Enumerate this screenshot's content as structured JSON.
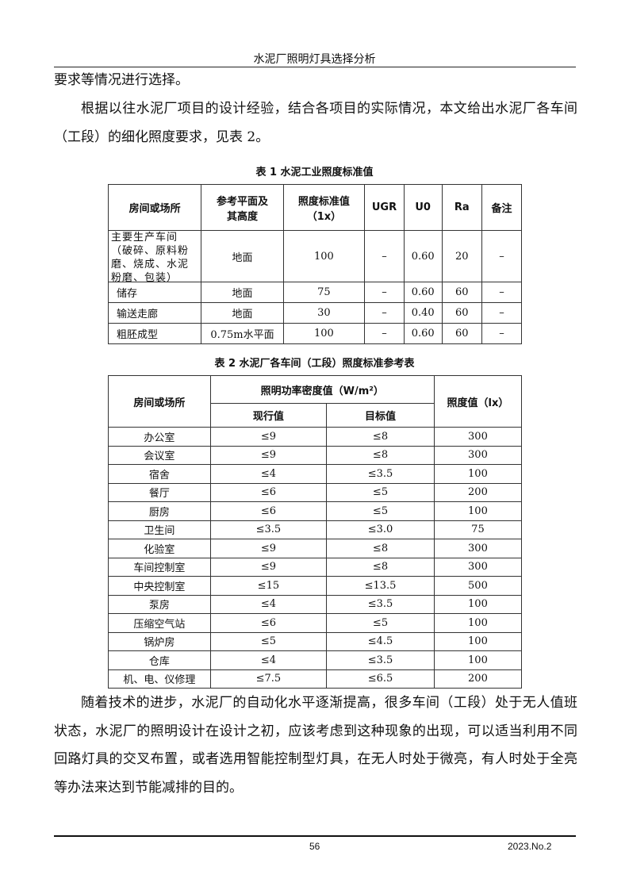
{
  "header": {
    "title": "水泥厂照明灯具选择分析"
  },
  "paragraphs": {
    "p0": "要求等情况进行选择。",
    "p1": "根据以往水泥厂项目的设计经验，结合各项目的实际情况，本文给出水泥厂各车间（工段）的细化照度要求，见表 2。",
    "p2": "随着技术的进步，水泥厂的自动化水平逐渐提高，很多车间（工段）处于无人值班状态，水泥厂的照明设计在设计之初，应该考虑到这种现象的出现，可以适当利用不同回路灯具的交叉布置，或者选用智能控制型灯具，在无人时处于微亮，有人时处于全亮等办法来达到节能减排的目的。"
  },
  "table1": {
    "caption": "表 1  水泥工业照度标准值",
    "headers": [
      "房间或场所",
      "参考平面及其高度",
      "照度标准值（1x）",
      "UGR",
      "U0",
      "Ra",
      "备注"
    ],
    "rows": [
      [
        "主要生产车间（破碎、原料粉磨、烧成、水泥粉磨、包装）",
        "地面",
        "100",
        "–",
        "0.60",
        "20",
        "–"
      ],
      [
        "储存",
        "地面",
        "75",
        "–",
        "0.60",
        "60",
        "–"
      ],
      [
        "输送走廊",
        "地面",
        "30",
        "–",
        "0.40",
        "60",
        "–"
      ],
      [
        "粗胚成型",
        "0.75m水平面",
        "100",
        "–",
        "0.60",
        "60",
        "–"
      ]
    ]
  },
  "table2": {
    "caption": "表 2  水泥厂各车间（工段）照度标准参考表",
    "headers": {
      "place": "房间或场所",
      "lpd": "照明功率密度值（W/m²）",
      "current": "现行值",
      "target": "目标值",
      "lux": "照度值（lx）"
    },
    "rows": [
      [
        "办公室",
        "≤9",
        "≤8",
        "300"
      ],
      [
        "会议室",
        "≤9",
        "≤8",
        "300"
      ],
      [
        "宿舍",
        "≤4",
        "≤3.5",
        "100"
      ],
      [
        "餐厅",
        "≤6",
        "≤5",
        "200"
      ],
      [
        "厨房",
        "≤6",
        "≤5",
        "100"
      ],
      [
        "卫生间",
        "≤3.5",
        "≤3.0",
        "75"
      ],
      [
        "化验室",
        "≤9",
        "≤8",
        "300"
      ],
      [
        "车间控制室",
        "≤9",
        "≤8",
        "300"
      ],
      [
        "中央控制室",
        "≤15",
        "≤13.5",
        "500"
      ],
      [
        "泵房",
        "≤4",
        "≤3.5",
        "100"
      ],
      [
        "压缩空气站",
        "≤6",
        "≤5",
        "100"
      ],
      [
        "锅炉房",
        "≤5",
        "≤4.5",
        "100"
      ],
      [
        "仓库",
        "≤4",
        "≤3.5",
        "100"
      ],
      [
        "机、电、仪修理",
        "≤7.5",
        "≤6.5",
        "200"
      ]
    ]
  },
  "footer": {
    "page": "56",
    "issue": "2023.No.2"
  }
}
